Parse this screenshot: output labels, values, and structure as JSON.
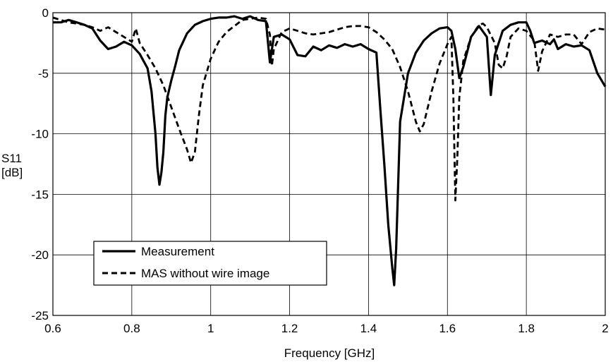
{
  "chart_data": {
    "type": "line",
    "title": "",
    "xlabel": "Frequency [GHz]",
    "ylabel_lines": [
      "S11",
      "[dB]"
    ],
    "xlim": [
      0.6,
      2.0
    ],
    "ylim": [
      -25,
      0
    ],
    "grid": true,
    "legend_placement": "bottom-left",
    "xticks": [
      0.6,
      0.8,
      1,
      1.2,
      1.4,
      1.6,
      1.8,
      2
    ],
    "xtick_labels": [
      "0.6",
      "0.8",
      "1",
      "1.2",
      "1.4",
      "1.6",
      "1.8",
      "2"
    ],
    "yticks": [
      0,
      -5,
      -10,
      -15,
      -20,
      -25
    ],
    "ytick_labels": [
      "0",
      "-5",
      "-10",
      "-15",
      "-20",
      "-25"
    ],
    "series": [
      {
        "name": "Measurement",
        "style": "solid",
        "color": "#000000",
        "points": [
          [
            0.6,
            -0.8
          ],
          [
            0.62,
            -0.8
          ],
          [
            0.64,
            -0.6
          ],
          [
            0.66,
            -0.8
          ],
          [
            0.68,
            -1.0
          ],
          [
            0.7,
            -1.3
          ],
          [
            0.72,
            -2.3
          ],
          [
            0.74,
            -3.0
          ],
          [
            0.76,
            -2.8
          ],
          [
            0.78,
            -2.4
          ],
          [
            0.8,
            -2.7
          ],
          [
            0.82,
            -3.4
          ],
          [
            0.84,
            -4.6
          ],
          [
            0.85,
            -6.5
          ],
          [
            0.86,
            -10.0
          ],
          [
            0.865,
            -12.8
          ],
          [
            0.87,
            -14.2
          ],
          [
            0.875,
            -13.2
          ],
          [
            0.88,
            -11.5
          ],
          [
            0.885,
            -8.5
          ],
          [
            0.89,
            -7.0
          ],
          [
            0.9,
            -5.6
          ],
          [
            0.91,
            -4.4
          ],
          [
            0.92,
            -3.1
          ],
          [
            0.94,
            -1.7
          ],
          [
            0.96,
            -1.0
          ],
          [
            0.98,
            -0.7
          ],
          [
            1.0,
            -0.5
          ],
          [
            1.02,
            -0.4
          ],
          [
            1.04,
            -0.4
          ],
          [
            1.06,
            -0.3
          ],
          [
            1.08,
            -0.5
          ],
          [
            1.1,
            -0.3
          ],
          [
            1.12,
            -0.6
          ],
          [
            1.14,
            -0.7
          ],
          [
            1.15,
            -4.1
          ],
          [
            1.16,
            -2.0
          ],
          [
            1.18,
            -1.8
          ],
          [
            1.2,
            -2.2
          ],
          [
            1.22,
            -3.5
          ],
          [
            1.24,
            -3.6
          ],
          [
            1.26,
            -2.8
          ],
          [
            1.28,
            -3.1
          ],
          [
            1.3,
            -2.7
          ],
          [
            1.32,
            -2.9
          ],
          [
            1.34,
            -2.6
          ],
          [
            1.36,
            -2.8
          ],
          [
            1.38,
            -2.6
          ],
          [
            1.4,
            -3.0
          ],
          [
            1.42,
            -3.3
          ],
          [
            1.43,
            -8.0
          ],
          [
            1.44,
            -12.5
          ],
          [
            1.45,
            -17.5
          ],
          [
            1.46,
            -21.0
          ],
          [
            1.465,
            -22.5
          ],
          [
            1.47,
            -19.5
          ],
          [
            1.48,
            -9.0
          ],
          [
            1.5,
            -5.0
          ],
          [
            1.52,
            -3.3
          ],
          [
            1.54,
            -2.3
          ],
          [
            1.56,
            -1.7
          ],
          [
            1.58,
            -1.3
          ],
          [
            1.6,
            -1.2
          ],
          [
            1.61,
            -1.5
          ],
          [
            1.62,
            -3.0
          ],
          [
            1.63,
            -5.4
          ],
          [
            1.64,
            -4.5
          ],
          [
            1.66,
            -2.0
          ],
          [
            1.68,
            -1.1
          ],
          [
            1.7,
            -2.0
          ],
          [
            1.71,
            -6.8
          ],
          [
            1.72,
            -3.5
          ],
          [
            1.74,
            -1.5
          ],
          [
            1.76,
            -1.0
          ],
          [
            1.78,
            -0.8
          ],
          [
            1.8,
            -0.8
          ],
          [
            1.81,
            -1.5
          ],
          [
            1.82,
            -2.5
          ],
          [
            1.84,
            -2.3
          ],
          [
            1.86,
            -2.6
          ],
          [
            1.87,
            -2.2
          ],
          [
            1.88,
            -3.0
          ],
          [
            1.9,
            -2.6
          ],
          [
            1.92,
            -2.8
          ],
          [
            1.94,
            -2.7
          ],
          [
            1.96,
            -3.1
          ],
          [
            1.98,
            -5.0
          ],
          [
            2.0,
            -6.1
          ]
        ]
      },
      {
        "name": "MAS without wire image",
        "style": "dashed",
        "color": "#000000",
        "points": [
          [
            0.6,
            -0.4
          ],
          [
            0.62,
            -0.6
          ],
          [
            0.64,
            -0.8
          ],
          [
            0.66,
            -0.9
          ],
          [
            0.68,
            -1.0
          ],
          [
            0.7,
            -1.2
          ],
          [
            0.72,
            -1.5
          ],
          [
            0.74,
            -1.2
          ],
          [
            0.76,
            -1.6
          ],
          [
            0.78,
            -2.0
          ],
          [
            0.8,
            -2.4
          ],
          [
            0.81,
            -1.3
          ],
          [
            0.82,
            -2.5
          ],
          [
            0.84,
            -3.5
          ],
          [
            0.86,
            -4.6
          ],
          [
            0.88,
            -6.0
          ],
          [
            0.9,
            -7.8
          ],
          [
            0.92,
            -9.6
          ],
          [
            0.94,
            -11.3
          ],
          [
            0.95,
            -12.4
          ],
          [
            0.96,
            -11.5
          ],
          [
            0.97,
            -8.5
          ],
          [
            0.98,
            -6.0
          ],
          [
            1.0,
            -3.8
          ],
          [
            1.02,
            -2.4
          ],
          [
            1.04,
            -1.6
          ],
          [
            1.06,
            -1.1
          ],
          [
            1.08,
            -0.6
          ],
          [
            1.1,
            -0.5
          ],
          [
            1.12,
            -0.4
          ],
          [
            1.14,
            -0.5
          ],
          [
            1.15,
            -1.8
          ],
          [
            1.155,
            -4.4
          ],
          [
            1.16,
            -3.0
          ],
          [
            1.18,
            -1.6
          ],
          [
            1.2,
            -1.3
          ],
          [
            1.22,
            -1.5
          ],
          [
            1.24,
            -1.7
          ],
          [
            1.26,
            -1.8
          ],
          [
            1.28,
            -1.7
          ],
          [
            1.3,
            -1.6
          ],
          [
            1.32,
            -1.4
          ],
          [
            1.34,
            -1.2
          ],
          [
            1.36,
            -1.1
          ],
          [
            1.38,
            -1.1
          ],
          [
            1.4,
            -1.2
          ],
          [
            1.42,
            -1.6
          ],
          [
            1.44,
            -2.2
          ],
          [
            1.46,
            -3.0
          ],
          [
            1.48,
            -4.5
          ],
          [
            1.5,
            -6.5
          ],
          [
            1.52,
            -9.0
          ],
          [
            1.53,
            -9.8
          ],
          [
            1.54,
            -9.2
          ],
          [
            1.56,
            -6.5
          ],
          [
            1.58,
            -4.2
          ],
          [
            1.6,
            -2.6
          ],
          [
            1.61,
            -2.0
          ],
          [
            1.615,
            -7.0
          ],
          [
            1.62,
            -15.5
          ],
          [
            1.625,
            -12.0
          ],
          [
            1.63,
            -7.0
          ],
          [
            1.64,
            -4.0
          ],
          [
            1.66,
            -2.0
          ],
          [
            1.68,
            -1.0
          ],
          [
            1.69,
            -0.9
          ],
          [
            1.7,
            -1.2
          ],
          [
            1.72,
            -2.5
          ],
          [
            1.73,
            -4.3
          ],
          [
            1.74,
            -4.6
          ],
          [
            1.75,
            -3.6
          ],
          [
            1.76,
            -2.0
          ],
          [
            1.78,
            -1.3
          ],
          [
            1.8,
            -1.5
          ],
          [
            1.82,
            -2.3
          ],
          [
            1.83,
            -4.8
          ],
          [
            1.84,
            -3.2
          ],
          [
            1.86,
            -1.8
          ],
          [
            1.88,
            -2.0
          ],
          [
            1.9,
            -1.8
          ],
          [
            1.92,
            -1.8
          ],
          [
            1.94,
            -2.6
          ],
          [
            1.96,
            -1.6
          ],
          [
            1.98,
            -1.3
          ],
          [
            2.0,
            -1.4
          ]
        ]
      }
    ]
  }
}
